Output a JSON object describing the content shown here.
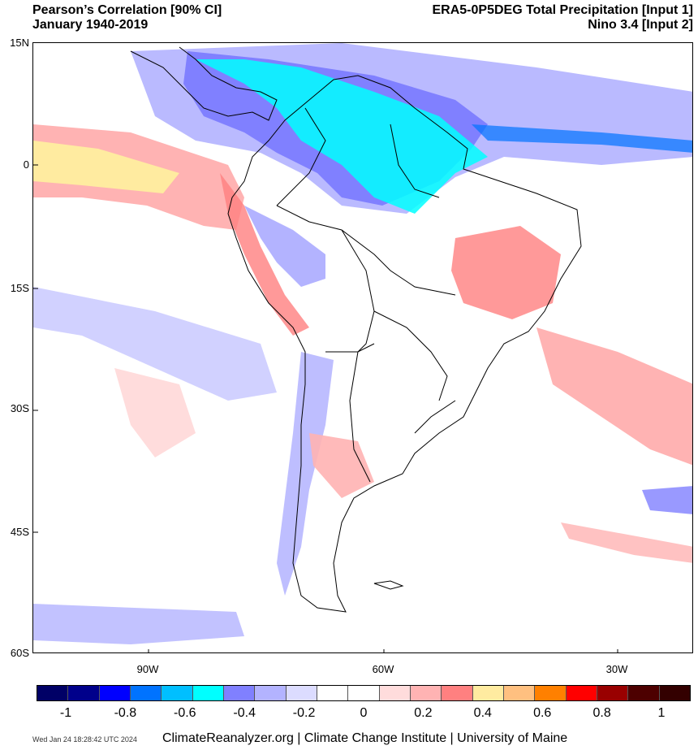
{
  "header": {
    "title_line1": "Pearson’s Correlation [90% CI]",
    "title_line2": "January 1940-2019",
    "dataset_line1": "ERA5-0P5DEG Total Precipitation [Input 1]",
    "dataset_line2": "Nino 3.4 [Input 2]"
  },
  "axes": {
    "lat_labels": [
      "15N",
      "0",
      "15S",
      "30S",
      "45S",
      "60S"
    ],
    "lon_labels": [
      "90W",
      "60W",
      "30W"
    ]
  },
  "colorbar": {
    "colors": [
      "#000066",
      "#00008b",
      "#0000ff",
      "#0073ff",
      "#00bfff",
      "#00ffff",
      "#8080ff",
      "#b3b3ff",
      "#dcdcff",
      "#ffffff",
      "#ffffff",
      "#ffdcdc",
      "#ffb3b3",
      "#ff8080",
      "#ffeba0",
      "#ffc080",
      "#ff8000",
      "#ff0000",
      "#990000",
      "#4d0000",
      "#330000"
    ],
    "labels": [
      "-1",
      "-0.8",
      "-0.6",
      "-0.4",
      "-0.2",
      "0",
      "0.2",
      "0.4",
      "0.6",
      "0.8",
      "1"
    ]
  },
  "footer": {
    "timestamp": "Wed Jan 24 18:28:42 UTC 2024",
    "credit": "ClimateReanalyzer.org | Climate Change Institute | University of Maine"
  }
}
